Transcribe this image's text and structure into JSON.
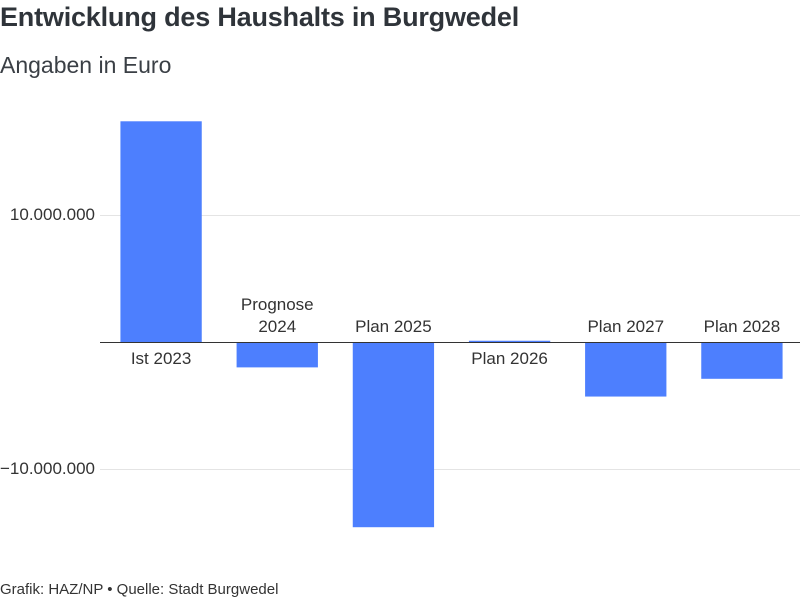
{
  "chart_data": {
    "type": "bar",
    "title": "Entwicklung des Haushalts in Burgwedel",
    "subtitle": "Angaben in Euro",
    "categories": [
      "Ist 2023",
      "Prognose 2024",
      "Plan 2025",
      "Plan 2026",
      "Plan 2027",
      "Plan 2028"
    ],
    "values": [
      17400000,
      -2000000,
      -14600000,
      100000,
      -4300000,
      -2900000
    ],
    "xlabel": "",
    "ylabel": "",
    "ylim": [
      -17500000,
      19000000
    ],
    "yticks": [
      {
        "value": 10000000,
        "label": "10.000.000"
      },
      {
        "value": -10000000,
        "label": "−10.000.000"
      }
    ],
    "grid": true,
    "legend": "none",
    "source": "Grafik: HAZ/NP • Quelle: Stadt Burgwedel"
  },
  "colors": {
    "bar": "#4d7ffe",
    "text": "#2f343a",
    "grid": "#e4e4e4",
    "zero_line": "#333333"
  }
}
